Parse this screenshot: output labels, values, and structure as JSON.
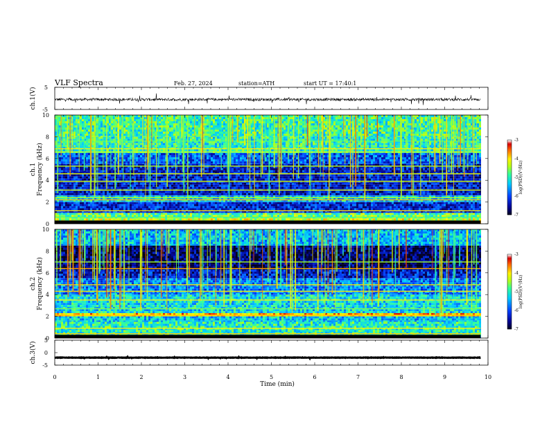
{
  "header": {
    "title": "VLF  Spectra",
    "date": "Feb. 27, 2024",
    "station": "station=ATH",
    "start": "start  UT  =   17:40:1"
  },
  "chart_data": [
    {
      "type": "line",
      "name": "ch1-waveform",
      "ylabel": "ch.1(V)",
      "ylim": [
        -5,
        5
      ],
      "y_ticks": [
        "5",
        "-5"
      ],
      "baseline": -0.5,
      "noise_amplitude": 1.2,
      "xlim": [
        0,
        10
      ],
      "data_end": 9.83
    },
    {
      "type": "heatmap",
      "name": "ch1-spectrogram",
      "ylabel": "ch.1\nFrequency (kHz)",
      "ylim": [
        0,
        10
      ],
      "y_ticks": [
        "0",
        "2",
        "4",
        "6",
        "8",
        "10"
      ],
      "xlim": [
        0,
        10
      ],
      "data_end": 9.83,
      "colorbar": {
        "label": "log(PSD)(V²/Hz)",
        "range": [
          -7,
          -3
        ],
        "ticks": [
          "-7",
          "-6",
          "-5",
          "-4",
          "-3"
        ]
      },
      "bands": [
        {
          "from": 0.0,
          "to": 0.5,
          "level": -4.3
        },
        {
          "from": 0.5,
          "to": 1.0,
          "level": -4.7
        },
        {
          "from": 1.0,
          "to": 2.0,
          "level": -6.2
        },
        {
          "from": 2.0,
          "to": 2.6,
          "level": -5.3
        },
        {
          "from": 2.6,
          "to": 5.5,
          "level": -6.3
        },
        {
          "from": 5.5,
          "to": 6.5,
          "level": -5.9
        },
        {
          "from": 6.5,
          "to": 8.0,
          "level": -5.0
        },
        {
          "from": 8.0,
          "to": 10.0,
          "level": -4.9
        }
      ],
      "lines_khz": [
        0.6,
        1.2,
        2.2,
        2.4,
        3.1,
        3.9,
        4.6,
        5.3,
        6.6,
        6.9,
        7.6
      ]
    },
    {
      "type": "heatmap",
      "name": "ch2-spectrogram",
      "ylabel": "ch.2\nFrequency (kHz)",
      "ylim": [
        0,
        10
      ],
      "y_ticks": [
        "0",
        "2",
        "4",
        "6",
        "8",
        "10"
      ],
      "xlim": [
        0,
        10
      ],
      "data_end": 9.83,
      "colorbar": {
        "label": "log(PSD)(V²/Hz)",
        "range": [
          -7,
          -3
        ],
        "ticks": [
          "-7",
          "-6",
          "-5",
          "-4",
          "-3"
        ]
      },
      "bands": [
        {
          "from": 0.0,
          "to": 1.5,
          "level": -5.0
        },
        {
          "from": 1.5,
          "to": 2.0,
          "level": -5.3
        },
        {
          "from": 2.0,
          "to": 2.3,
          "level": -3.8
        },
        {
          "from": 2.3,
          "to": 4.0,
          "level": -5.2
        },
        {
          "from": 4.0,
          "to": 5.5,
          "level": -5.7
        },
        {
          "from": 5.5,
          "to": 6.3,
          "level": -6.3
        },
        {
          "from": 6.3,
          "to": 8.5,
          "level": -6.7
        },
        {
          "from": 8.5,
          "to": 10.0,
          "level": -5.4
        }
      ],
      "lines_khz": [
        0.4,
        0.9,
        2.1,
        2.7,
        3.5,
        4.3,
        4.9,
        6.4,
        7.0
      ]
    },
    {
      "type": "line",
      "name": "ch3-waveform",
      "ylabel": "ch.3(V)",
      "ylim": [
        -5,
        5
      ],
      "y_ticks": [
        "5",
        "0",
        "-5"
      ],
      "baseline": -2.0,
      "noise_amplitude": 0.15,
      "xlim": [
        0,
        10
      ],
      "data_end": 9.83
    }
  ],
  "x_axis": {
    "label": "Time  (min)",
    "range": [
      0,
      10
    ],
    "ticks": [
      "0",
      "1",
      "2",
      "3",
      "4",
      "5",
      "6",
      "7",
      "8",
      "9",
      "10"
    ]
  }
}
